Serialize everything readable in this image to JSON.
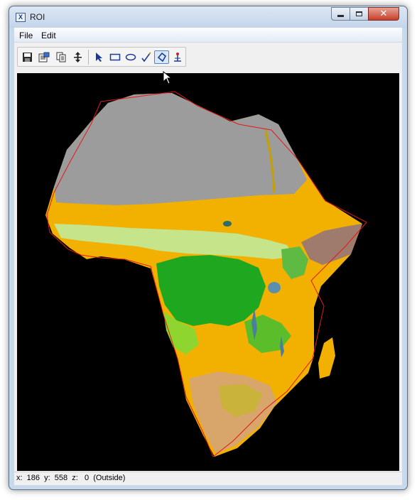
{
  "window": {
    "title": "ROI",
    "app_icon_letter": "X"
  },
  "menu": {
    "file": "File",
    "edit": "Edit"
  },
  "toolbar": {
    "buttons": [
      {
        "name": "save-icon",
        "active": false
      },
      {
        "name": "properties-icon",
        "active": false
      },
      {
        "name": "copy-icon",
        "active": false
      },
      {
        "name": "move-icon",
        "active": false
      },
      {
        "name": "arrow-pointer-icon",
        "active": false
      },
      {
        "name": "rectangle-icon",
        "active": false
      },
      {
        "name": "ellipse-icon",
        "active": false
      },
      {
        "name": "freehand-icon",
        "active": false
      },
      {
        "name": "polygon-icon",
        "active": true
      },
      {
        "name": "point-icon",
        "active": false
      }
    ]
  },
  "status": {
    "text": "x:  186  y:  558  z:   0  (Outside)"
  },
  "colors": {
    "background": "#000000",
    "desert": "#9c9c9c",
    "grassland": "#f2b100",
    "savanna": "#c6e48a",
    "forest": "#1fa81f",
    "shrub": "#d8a56b",
    "highland": "#9e7b6c",
    "roi_line": "#e31818"
  }
}
